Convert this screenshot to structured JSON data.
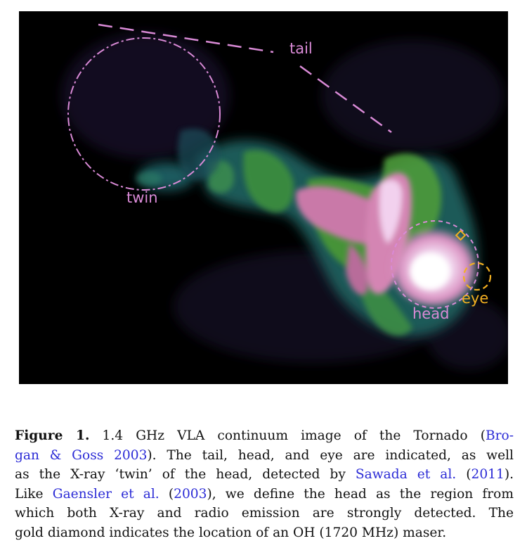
{
  "figure": {
    "labels": {
      "tail": "tail",
      "twin": "twin",
      "head": "head",
      "eye": "eye"
    },
    "colors": {
      "overlay_pink": "#d98ad6",
      "overlay_gold": "#f2b021",
      "background": "#000000"
    }
  },
  "caption": {
    "label": "Figure 1.",
    "l1a": " 1.4 GHz VLA continuum image of the Tornado (",
    "ref1a": "Bro-",
    "ref1b": "gan & Goss 2003",
    "l2b": "). The tail, head, and eye are indicated, as well",
    "l3a": "as the X-ray ‘twin’ of the head, detected by ",
    "ref2": "Sawada et al.",
    "l3b": " (",
    "ref2y": "2011",
    "l3c": ").",
    "l4a": "Like ",
    "ref3": "Gaensler et al.",
    "l4b": " (",
    "ref3y": "2003",
    "l4c": "), we define the head as the region from",
    "l5": "which both X-ray and radio emission are strongly detected. The",
    "l6": "gold diamond indicates the location of an OH (1720 MHz) maser."
  }
}
